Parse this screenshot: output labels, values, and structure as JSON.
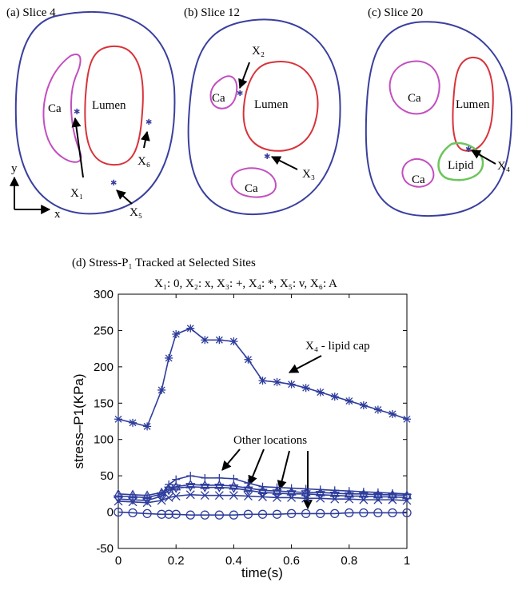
{
  "panels": [
    {
      "title": "(a) Slice 4",
      "labels": [
        "Ca",
        "Lumen",
        "X₁",
        "X₆",
        "X₅",
        "y",
        "x"
      ]
    },
    {
      "title": "(b) Slice 12",
      "labels": [
        "X₂",
        "Ca",
        "Lumen",
        "X₃",
        "Ca"
      ]
    },
    {
      "title": "(c) Slice 20",
      "labels": [
        "Ca",
        "Lumen",
        "X₄",
        "Lipid",
        "Ca"
      ]
    }
  ],
  "chart_data": {
    "type": "line",
    "title": "(d) Stress-P₁ Tracked at Selected Sites",
    "subtitle": "X₁: 0, X₂: x, X₃: +, X₄: *, X₅: v, X₆: A",
    "x_label": "time(s)",
    "y_label": "stress–P1(KPa)",
    "annotations": [
      "X₄ - lipid cap",
      "Other locations"
    ],
    "x": [
      0,
      0.05,
      0.1,
      0.15,
      0.175,
      0.2,
      0.25,
      0.3,
      0.35,
      0.4,
      0.45,
      0.5,
      0.55,
      0.6,
      0.65,
      0.7,
      0.75,
      0.8,
      0.85,
      0.9,
      0.95,
      1
    ],
    "series": [
      {
        "marker": "o",
        "color": "#2e3d9c",
        "values": [
          0,
          -1,
          -2,
          -3,
          -3,
          -3,
          -4,
          -4,
          -4,
          -4,
          -3,
          -3,
          -3,
          -2,
          -2,
          -2,
          -2,
          -1,
          -1,
          -1,
          -1,
          -1
        ]
      },
      {
        "marker": "x",
        "color": "#2e3d9c",
        "values": [
          15,
          14,
          13,
          16,
          20,
          22,
          24,
          23,
          23,
          23,
          22,
          21,
          20,
          20,
          19,
          19,
          18,
          18,
          17,
          17,
          17,
          16
        ]
      },
      {
        "marker": "+",
        "color": "#2e3d9c",
        "values": [
          22,
          21,
          20,
          25,
          38,
          45,
          50,
          47,
          47,
          46,
          40,
          35,
          34,
          33,
          32,
          31,
          30,
          29,
          28,
          27,
          26,
          25
        ]
      },
      {
        "marker": "*",
        "color": "#2e3d9c",
        "values": [
          128,
          123,
          118,
          168,
          212,
          245,
          253,
          237,
          237,
          235,
          210,
          181,
          179,
          176,
          171,
          165,
          159,
          153,
          147,
          141,
          135,
          128
        ]
      },
      {
        "marker": "v",
        "color": "#2e3d9c",
        "values": [
          18,
          17,
          16,
          22,
          30,
          33,
          35,
          34,
          34,
          33,
          30,
          27,
          26,
          25,
          25,
          24,
          23,
          22,
          22,
          21,
          21,
          20
        ]
      },
      {
        "marker": "^",
        "color": "#2e3d9c",
        "values": [
          25,
          24,
          23,
          27,
          32,
          35,
          38,
          37,
          37,
          36,
          33,
          30,
          29,
          28,
          27,
          27,
          26,
          25,
          25,
          24,
          24,
          23
        ]
      }
    ],
    "xlim": [
      0,
      1
    ],
    "xticks": [
      0,
      0.2,
      0.4,
      0.6,
      0.8,
      1
    ],
    "ylim": [
      -50,
      300
    ],
    "yticks": [
      -50,
      0,
      50,
      100,
      150,
      200,
      250,
      300
    ],
    "grid": false
  }
}
